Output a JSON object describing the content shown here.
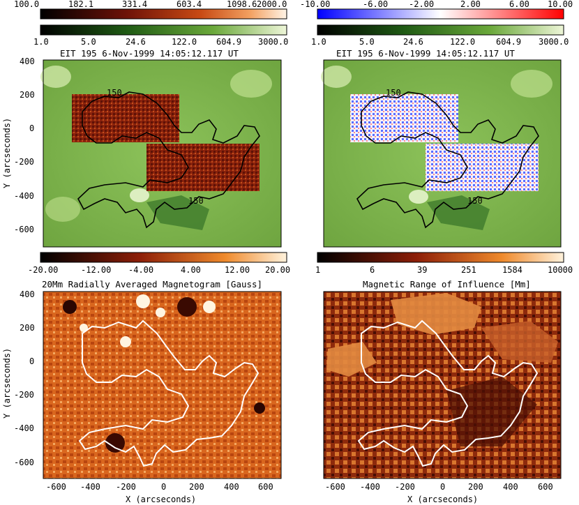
{
  "colorbars": {
    "top_left_red": {
      "ticks": [
        "100.0",
        "182.1",
        "331.4",
        "603.4",
        "1098.6",
        "2000.0"
      ]
    },
    "top_left_green": {
      "ticks": [
        "1.0",
        "5.0",
        "24.6",
        "122.0",
        "604.9",
        "3000.0"
      ]
    },
    "top_right_bwr": {
      "ticks": [
        "-10.00",
        "-6.00",
        "-2.00",
        "2.00",
        "6.00",
        "10.00"
      ]
    },
    "top_right_green": {
      "ticks": [
        "1.0",
        "5.0",
        "24.6",
        "122.0",
        "604.9",
        "3000.0"
      ]
    },
    "mid_left_heat": {
      "ticks": [
        "-20.00",
        "-12.00",
        "-4.00",
        "4.00",
        "12.00",
        "20.00"
      ]
    },
    "mid_right_heat": {
      "ticks": [
        "1",
        "6",
        "39",
        "251",
        "1584",
        "10000"
      ]
    }
  },
  "panels": {
    "top_left": {
      "title": "EIT 195  6-Nov-1999 14:05:12.117 UT",
      "contour_label": "150"
    },
    "top_right": {
      "title": "EIT 195  6-Nov-1999 14:05:12.117 UT",
      "contour_label": "150"
    },
    "bottom_left": {
      "title": "20Mm Radially Averaged Magnetogram [Gauss]"
    },
    "bottom_right": {
      "title": "Magnetic Range of Influence [Mm]"
    }
  },
  "axes": {
    "ylabel": "Y (arcseconds)",
    "xlabel": "X (arcseconds)",
    "y_ticks": [
      "400",
      "200",
      "0",
      "-200",
      "-400",
      "-600"
    ],
    "x_ticks": [
      "-600",
      "-400",
      "-200",
      "0",
      "200",
      "400",
      "600"
    ]
  },
  "colors": {
    "eit_green": "#7fb04a",
    "eit_dark": "#2f6b2a",
    "mag_orange": "#e0762a",
    "mri_dark": "#6e1a08",
    "contour_white": "#ffffff",
    "contour_black": "#000000"
  }
}
